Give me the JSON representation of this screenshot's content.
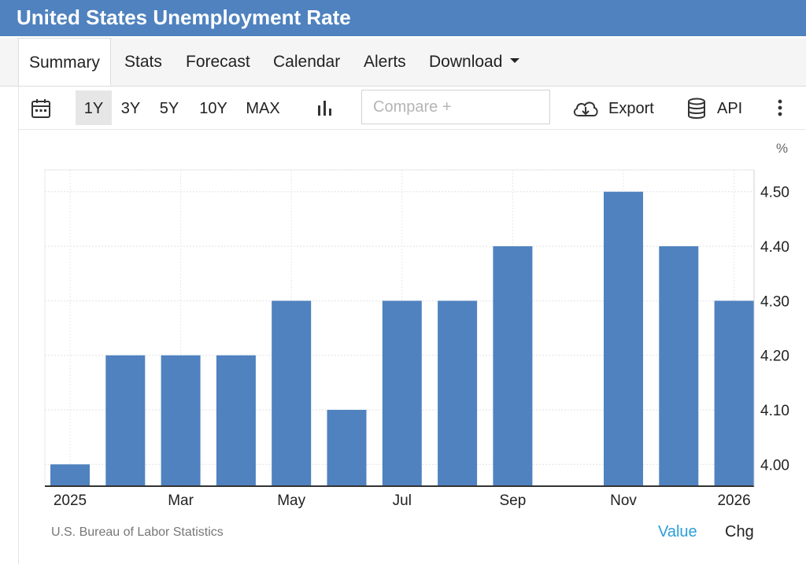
{
  "header": {
    "title": "United States Unemployment Rate"
  },
  "tabs": [
    {
      "label": "Summary",
      "active": true
    },
    {
      "label": "Stats"
    },
    {
      "label": "Forecast"
    },
    {
      "label": "Calendar"
    },
    {
      "label": "Alerts"
    },
    {
      "label": "Download",
      "has_dropdown": true
    }
  ],
  "toolbar": {
    "calendar_icon": "calendar-icon",
    "ranges": [
      "1Y",
      "3Y",
      "5Y",
      "10Y",
      "MAX"
    ],
    "selected_range": "1Y",
    "chart_type_icon": "bar-chart-icon",
    "compare_placeholder": "Compare +",
    "export_icon": "cloud-download-icon",
    "export_label": "Export",
    "api_icon": "database-icon",
    "api_label": "API",
    "more_icon": "vertical-ellipsis-icon"
  },
  "colors": {
    "brand": "#4f82bf",
    "bar": "#4f82bf",
    "link": "#2a9fd8"
  },
  "chart_data": {
    "type": "bar",
    "unit_label": "%",
    "categories": [
      "2025-01",
      "2025-02",
      "2025-03",
      "2025-04",
      "2025-05",
      "2025-06",
      "2025-07",
      "2025-08",
      "2025-09",
      "2025-10",
      "2025-11",
      "2025-12",
      "2026-01"
    ],
    "values": [
      4.0,
      4.2,
      4.2,
      4.2,
      4.3,
      4.1,
      4.3,
      4.3,
      4.4,
      null,
      4.5,
      4.4,
      4.3
    ],
    "x_tick_labels": [
      "2025",
      "Mar",
      "May",
      "Jul",
      "Sep",
      "Nov",
      "2026"
    ],
    "y_ticks": [
      4.0,
      4.1,
      4.2,
      4.3,
      4.4,
      4.5
    ],
    "y_tick_labels": [
      "4.00",
      "4.10",
      "4.20",
      "4.30",
      "4.40",
      "4.50"
    ],
    "ylim": [
      3.96,
      4.54
    ],
    "y_axis_side": "right",
    "grid": true,
    "legend": false
  },
  "footer": {
    "source": "U.S. Bureau of Labor Statistics",
    "value_label": "Value",
    "chg_label": "Chg"
  }
}
